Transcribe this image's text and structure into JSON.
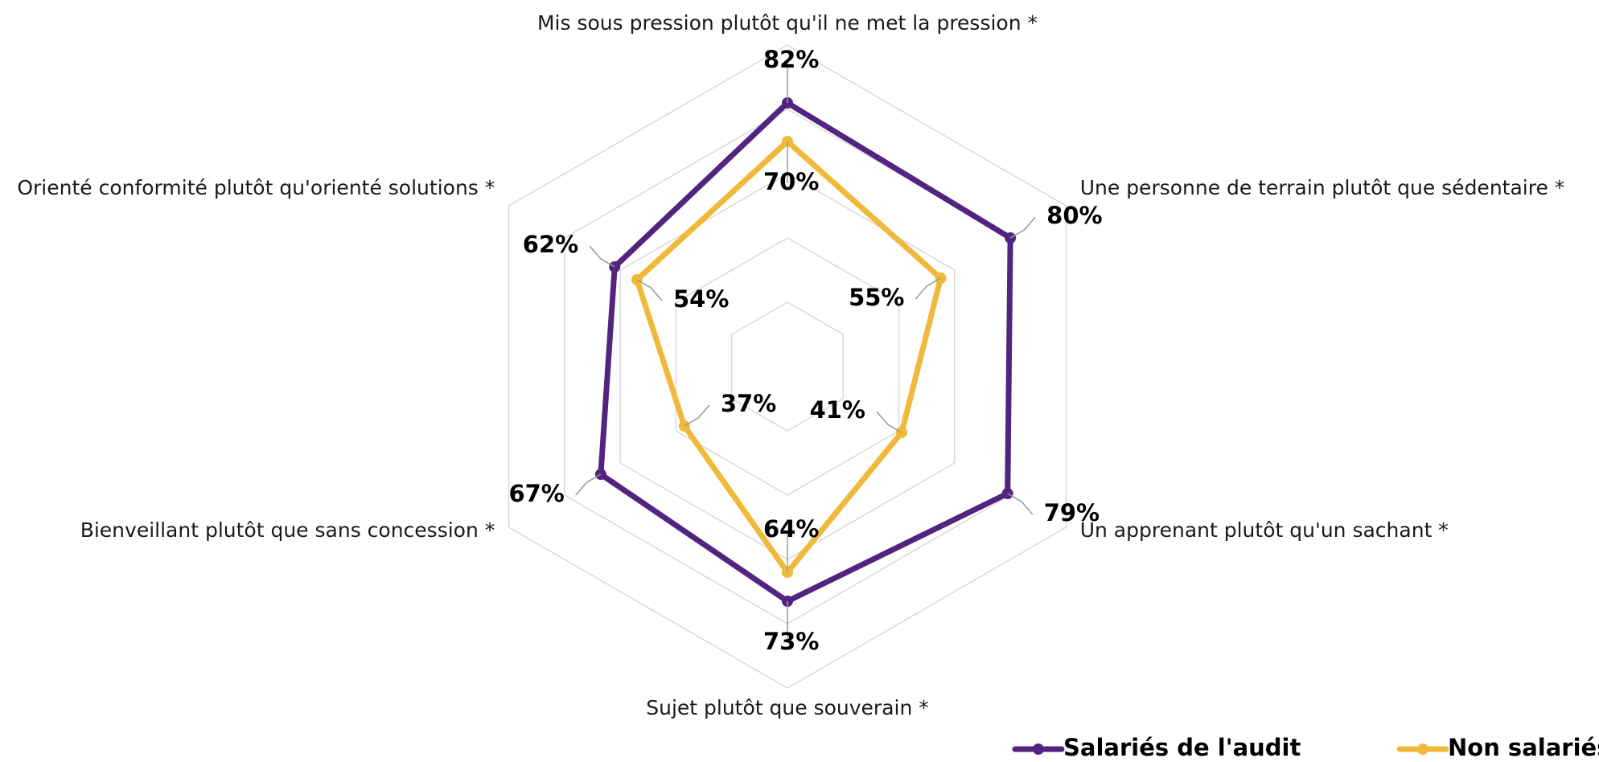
{
  "chart_data": {
    "type": "radar",
    "categories": [
      "Mis sous pression plutôt qu'il ne met la pression *",
      "Une personne de terrain plutôt que sédentaire *",
      "Un apprenant plutôt qu'un sachant *",
      "Sujet plutôt que souverain *",
      "Bienveillant plutôt que sans concession *",
      "Orienté conformité plutôt qu'orienté solutions *"
    ],
    "series": [
      {
        "name": "Salariés de l'audit",
        "color": "#52237f",
        "values": [
          82,
          80,
          79,
          73,
          67,
          62
        ],
        "value_labels": [
          "82%",
          "80%",
          "79%",
          "73%",
          "67%",
          "62%"
        ]
      },
      {
        "name": "Non salariés",
        "color": "#f0b93a",
        "values": [
          70,
          55,
          41,
          64,
          37,
          54
        ],
        "value_labels": [
          "70%",
          "55%",
          "41%",
          "64%",
          "37%",
          "54%"
        ]
      }
    ],
    "rlim": [
      0,
      100
    ],
    "rticks": [
      20,
      40,
      60,
      80,
      100
    ],
    "grid": true,
    "legend": "bottom-right"
  }
}
